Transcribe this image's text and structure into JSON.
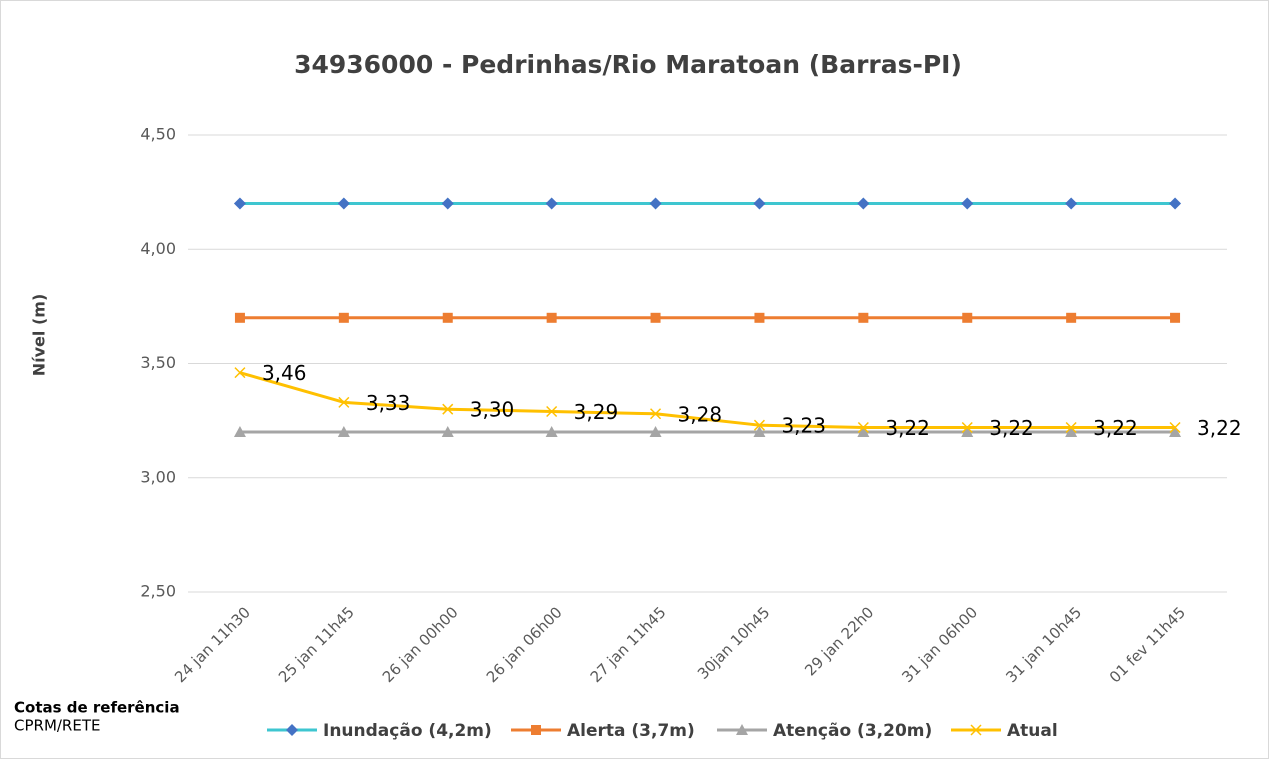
{
  "chart_data": {
    "type": "line",
    "title": "34936000 - Pedrinhas/Rio Maratoan (Barras-PI)",
    "y_label": "Nível (m)",
    "footnote_title": "Cotas de referência",
    "footnote": "CPRM/RETE",
    "categories": [
      "24 jan 11h30",
      "25 jan 11h45",
      "26 jan 00h00",
      "26 jan 06h00",
      "27 jan 11h45",
      "30jan 10h45",
      "29 jan 22h0",
      "31 jan 06h00",
      "31 jan 10h45",
      "01 fev 11h45"
    ],
    "ylim": [
      2.5,
      4.5
    ],
    "yticks": [
      {
        "value": 2.5,
        "label": "2,50"
      },
      {
        "value": 3.0,
        "label": "3,00"
      },
      {
        "value": 3.5,
        "label": "3,50"
      },
      {
        "value": 4.0,
        "label": "4,00"
      },
      {
        "value": 4.5,
        "label": "4,50"
      }
    ],
    "grid": true,
    "legend": "bottom",
    "series": [
      {
        "name": "Inundação (4,2m)",
        "color": "#3ec6d0",
        "marker_color": "#4472c4",
        "marker": "diamond",
        "values": [
          4.2,
          4.2,
          4.2,
          4.2,
          4.2,
          4.2,
          4.2,
          4.2,
          4.2,
          4.2
        ]
      },
      {
        "name": "Alerta (3,7m)",
        "color": "#ed7d31",
        "marker_color": "#ed7d31",
        "marker": "square",
        "values": [
          3.7,
          3.7,
          3.7,
          3.7,
          3.7,
          3.7,
          3.7,
          3.7,
          3.7,
          3.7
        ]
      },
      {
        "name": "Atenção (3,20m)",
        "color": "#a5a5a5",
        "marker_color": "#a5a5a5",
        "marker": "triangle",
        "values": [
          3.2,
          3.2,
          3.2,
          3.2,
          3.2,
          3.2,
          3.2,
          3.2,
          3.2,
          3.2
        ]
      },
      {
        "name": "Atual",
        "color": "#ffc000",
        "marker_color": "#ffc000",
        "marker": "x",
        "values": [
          3.46,
          3.33,
          3.3,
          3.29,
          3.28,
          3.23,
          3.22,
          3.22,
          3.22,
          3.22
        ],
        "value_labels": [
          "3,46",
          "3,33",
          "3,30",
          "3,29",
          "3,28",
          "3,23",
          "3,22",
          "3,22",
          "3,22",
          "3,22"
        ]
      }
    ]
  }
}
